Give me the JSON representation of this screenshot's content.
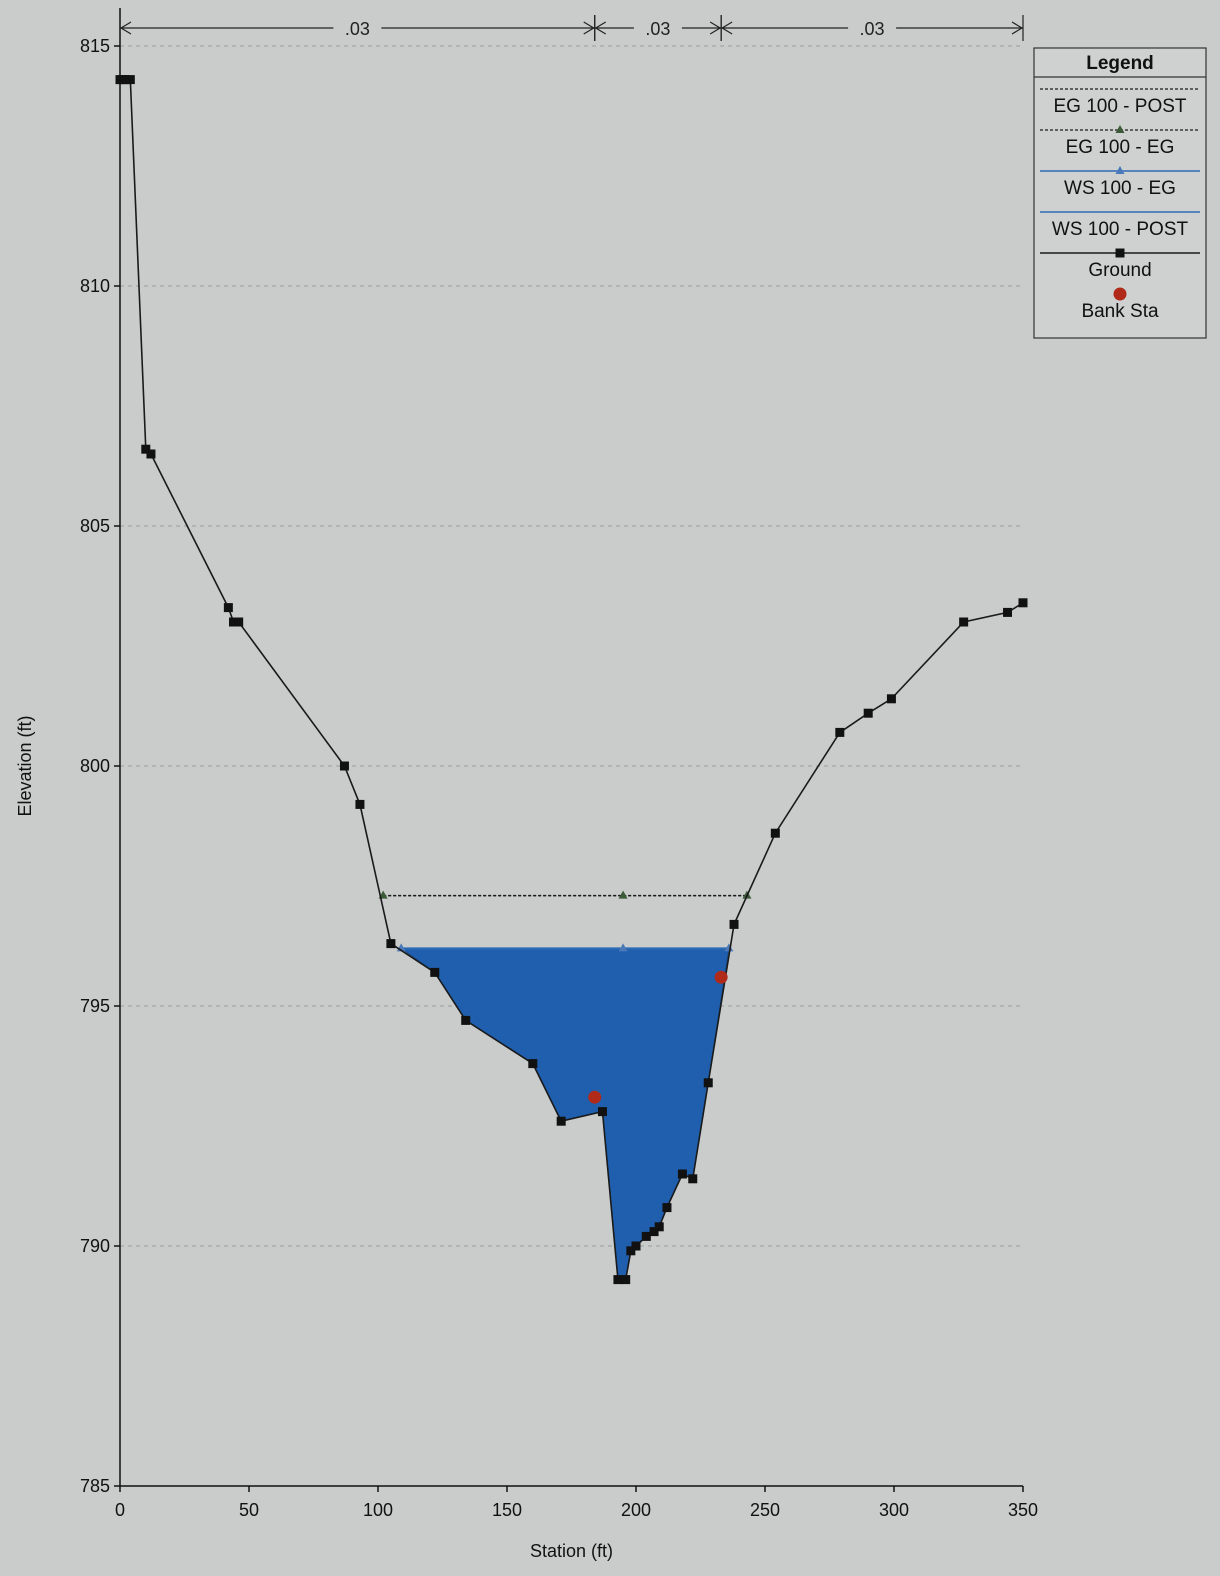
{
  "chart_data": {
    "type": "line",
    "xlabel": "Station (ft)",
    "ylabel": "Elevation (ft)",
    "xlim": [
      0,
      350
    ],
    "ylim": [
      785,
      815
    ],
    "x_ticks": [
      0,
      50,
      100,
      150,
      200,
      250,
      300,
      350
    ],
    "x_tick_labels": [
      "0",
      "50",
      "100",
      "150",
      "200",
      "250",
      "300",
      "350"
    ],
    "y_ticks": [
      785,
      790,
      795,
      800,
      805,
      810,
      815
    ],
    "y_tick_labels": [
      "785",
      "790",
      "795",
      "800",
      "805",
      "810",
      "815"
    ],
    "grid": "horizontal dashed",
    "manning_n": [
      {
        "label": ".03",
        "from": 0,
        "to": 184
      },
      {
        "label": ".03",
        "from": 184,
        "to": 233
      },
      {
        "label": ".03",
        "from": 233,
        "to": 350
      }
    ],
    "legend": {
      "title": "Legend",
      "placement": "top-right",
      "entries": [
        {
          "label": "EG 100 - POST",
          "style": "dotted",
          "marker": "none",
          "color": "#1a1a1a"
        },
        {
          "label": "EG 100 - EG",
          "style": "dotted",
          "marker": "triangle",
          "color": "#1a1a1a"
        },
        {
          "label": "WS 100 - EG",
          "style": "solid",
          "marker": "triangle",
          "color": "#2d6cb5"
        },
        {
          "label": "WS 100 - POST",
          "style": "solid",
          "marker": "none",
          "color": "#2d6cb5"
        },
        {
          "label": "Ground",
          "style": "solid",
          "marker": "square",
          "color": "#1a1a1a"
        },
        {
          "label": "Bank Sta",
          "style": "none",
          "marker": "circle",
          "color": "#b02a1a"
        }
      ]
    },
    "series": [
      {
        "name": "Ground",
        "color": "#1a1a1a",
        "x": [
          0,
          1,
          2,
          4,
          10,
          12,
          42,
          44,
          46,
          87,
          93,
          105,
          122,
          134,
          160,
          171,
          187,
          193,
          196,
          198,
          200,
          204,
          207,
          209,
          212,
          218,
          222,
          228,
          238,
          254,
          279,
          290,
          299,
          327,
          344,
          350
        ],
        "y": [
          814.3,
          814.3,
          814.3,
          814.3,
          806.6,
          806.5,
          803.3,
          803.0,
          803.0,
          800.0,
          799.2,
          796.3,
          795.7,
          794.7,
          793.8,
          792.6,
          792.8,
          789.3,
          789.3,
          789.9,
          790.0,
          790.2,
          790.3,
          790.4,
          790.8,
          791.5,
          791.4,
          793.4,
          796.7,
          798.6,
          800.7,
          801.1,
          801.4,
          803.0,
          803.2,
          803.4
        ]
      },
      {
        "name": "EG 100 - POST",
        "color": "#1a1a1a",
        "x": [
          102,
          243
        ],
        "y": [
          797.3,
          797.3
        ]
      },
      {
        "name": "EG 100 - EG",
        "color": "#1a1a1a",
        "x": [
          102,
          195,
          243
        ],
        "y": [
          797.3,
          797.3,
          797.3
        ]
      },
      {
        "name": "WS 100 - EG",
        "color": "#2d6cb5",
        "x": [
          109,
          195,
          236
        ],
        "y": [
          796.2,
          796.2,
          796.2
        ]
      },
      {
        "name": "WS 100 - POST",
        "color": "#2d6cb5",
        "x": [
          109,
          236
        ],
        "y": [
          796.2,
          796.2
        ]
      },
      {
        "name": "Bank Sta",
        "color": "#b02a1a",
        "x": [
          184,
          233
        ],
        "y": [
          793.1,
          795.6
        ]
      }
    ],
    "water_fill_color": "#1f5fae"
  }
}
